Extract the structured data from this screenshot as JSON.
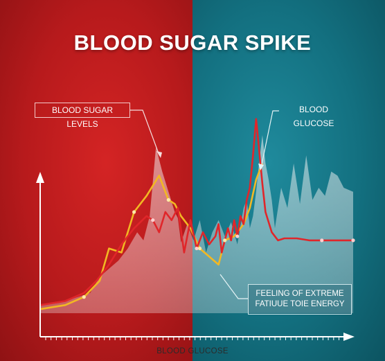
{
  "title": "BLOOD SUGAR SPIKE",
  "callouts": {
    "blood_sugar_levels": "BLOOD SUGAR LEVELS",
    "blood_glucose": "BLOOD GLUCOSE",
    "fatigue_line1": "FEELING OF EXTREME",
    "fatigue_line2": "FATIUUE TOIE ENERGY"
  },
  "colors": {
    "left_background": "#c21e20",
    "right_background": "#17798a",
    "area_fill": "#f2f2f2",
    "red_line": "#e0262a",
    "yellow_line": "#f2b823",
    "axis": "#ffffff"
  },
  "chart_data": {
    "type": "line",
    "title": "BLOOD SUGAR SPIKE",
    "xlabel": "BLOOD GLUCOSE",
    "ylabel": "",
    "x_ticks_labeled": false,
    "y_ticks_labeled": false,
    "xlim": [
      0,
      100
    ],
    "ylim": [
      0,
      100
    ],
    "grid": false,
    "series": [
      {
        "role": "area",
        "x": [
          0,
          6,
          12,
          16,
          19,
          22,
          25,
          28,
          31,
          33,
          35,
          37,
          39,
          41,
          43,
          44,
          45,
          47,
          49,
          51,
          53,
          55,
          57,
          59,
          61,
          63,
          65,
          66,
          67,
          68,
          69,
          70,
          71,
          72,
          73,
          74,
          75,
          77,
          79,
          81,
          83,
          85,
          87,
          89,
          91,
          93,
          95,
          97,
          100
        ],
        "values": [
          4,
          5,
          8,
          10,
          18,
          22,
          26,
          32,
          40,
          36,
          48,
          82,
          70,
          60,
          50,
          47,
          35,
          44,
          36,
          46,
          30,
          40,
          46,
          38,
          45,
          34,
          52,
          56,
          42,
          48,
          60,
          75,
          88,
          74,
          66,
          56,
          42,
          62,
          52,
          74,
          54,
          78,
          56,
          62,
          58,
          70,
          68,
          62,
          60
        ]
      },
      {
        "role": "red",
        "x": [
          0,
          8,
          14,
          18,
          22,
          26,
          30,
          34,
          36,
          38,
          40,
          42,
          44,
          46,
          48,
          50,
          52,
          54,
          56,
          57,
          58,
          60,
          61,
          62,
          63,
          64,
          65,
          66,
          67,
          68,
          69,
          70,
          71,
          72,
          74,
          76,
          78,
          82,
          86,
          90,
          95,
          100
        ],
        "values": [
          4,
          6,
          10,
          16,
          24,
          34,
          42,
          48,
          46,
          40,
          50,
          46,
          52,
          30,
          46,
          32,
          40,
          34,
          38,
          44,
          30,
          42,
          36,
          46,
          38,
          48,
          44,
          56,
          62,
          78,
          96,
          80,
          64,
          50,
          40,
          36,
          37,
          37,
          36,
          36,
          36,
          36
        ]
      },
      {
        "role": "yellow",
        "x": [
          0,
          8,
          14,
          19,
          22,
          26,
          30,
          34,
          38,
          41,
          43,
          45,
          48,
          51,
          54,
          57,
          59,
          62,
          65,
          67,
          69,
          71
        ],
        "values": [
          2,
          4,
          8,
          16,
          32,
          30,
          50,
          58,
          68,
          56,
          54,
          48,
          42,
          32,
          28,
          24,
          36,
          38,
          44,
          52,
          66,
          74
        ]
      }
    ]
  }
}
